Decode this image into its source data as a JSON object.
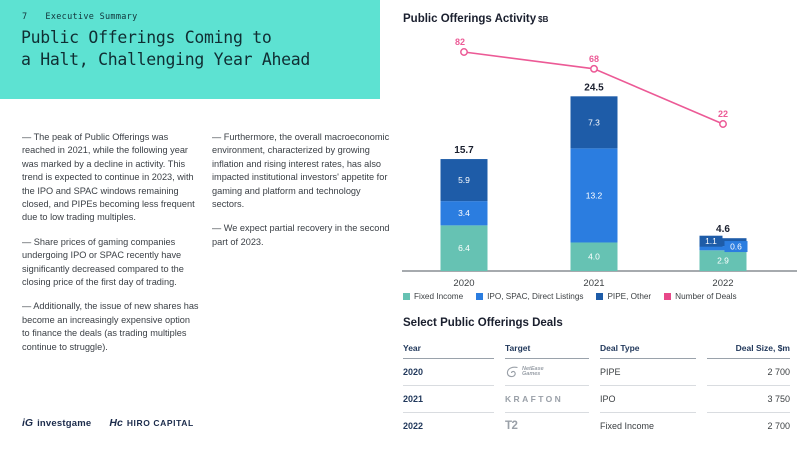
{
  "slide": {
    "page_number": "7",
    "kicker": "Executive Summary",
    "title_line1": "Public Offerings Coming to",
    "title_line2": "a Halt, Challenging Year Ahead",
    "accent_color": "#5DE2D2"
  },
  "body": {
    "column1": [
      "— The peak of Public Offerings was reached in 2021, while the following year was marked by a decline in activity. This trend is expected to continue in 2023, with the IPO and SPAC windows remaining closed, and PIPEs becoming less frequent due to low trading multiples.",
      "— Share prices of gaming companies undergoing IPO or SPAC recently have significantly decreased compared to the closing price of the first day of trading.",
      "— Additionally, the issue of new shares has become an increasingly expensive option to finance the deals (as trading multiples continue to struggle)."
    ],
    "column2": [
      "— Furthermore, the overall macroeconomic environment, characterized by growing inflation and rising interest rates, has also impacted institutional investors' appetite for gaming and platform and technology sectors.",
      "— We expect partial recovery in the second part of 2023."
    ]
  },
  "chart": {
    "title": "Public Offerings Activity",
    "unit": "$B"
  },
  "chart_data": {
    "type": "bar",
    "title": "Public Offerings Activity $B",
    "categories": [
      "2020",
      "2021",
      "2022"
    ],
    "series": [
      {
        "name": "Fixed Income",
        "color": "#66C2B3",
        "values": [
          6.4,
          4.0,
          2.9
        ]
      },
      {
        "name": "IPO, SPAC, Direct Listings",
        "color": "#2B7DE0",
        "values": [
          3.4,
          13.2,
          0.6
        ]
      },
      {
        "name": "PIPE, Other",
        "color": "#1E5CA8",
        "values": [
          5.9,
          7.3,
          1.1
        ]
      }
    ],
    "totals": [
      15.7,
      24.5,
      4.6
    ],
    "line_series": {
      "name": "Number of Deals",
      "color": "#EC5A96",
      "values": [
        82,
        68,
        22
      ]
    },
    "ylim": [
      0,
      26
    ],
    "grid": false,
    "legend_position": "bottom"
  },
  "legend": [
    {
      "label": "Fixed Income",
      "color": "#66C2B3"
    },
    {
      "label": "IPO, SPAC, Direct Listings",
      "color": "#2B7DE0"
    },
    {
      "label": "PIPE, Other",
      "color": "#1E5CA8"
    },
    {
      "label": "Number of Deals",
      "color": "#E84889"
    }
  ],
  "deals_table": {
    "title": "Select Public Offerings Deals",
    "columns": [
      "Year",
      "Target",
      "Deal Type",
      "Deal Size, $m"
    ],
    "rows": [
      {
        "year": "2020",
        "target": "NetEase Games",
        "logo_style": "netease",
        "deal_type": "PIPE",
        "deal_size": "2 700"
      },
      {
        "year": "2021",
        "target": "KRAFTON",
        "logo_style": "krafton",
        "deal_type": "IPO",
        "deal_size": "3 750"
      },
      {
        "year": "2022",
        "target": "T2",
        "logo_style": "t2",
        "deal_type": "Fixed Income",
        "deal_size": "2 700"
      }
    ]
  },
  "footer": {
    "investgame": {
      "mark": "iG",
      "label": "investgame"
    },
    "hiro": {
      "mark": "Hc",
      "label": "HIRO CAPITAL"
    }
  }
}
